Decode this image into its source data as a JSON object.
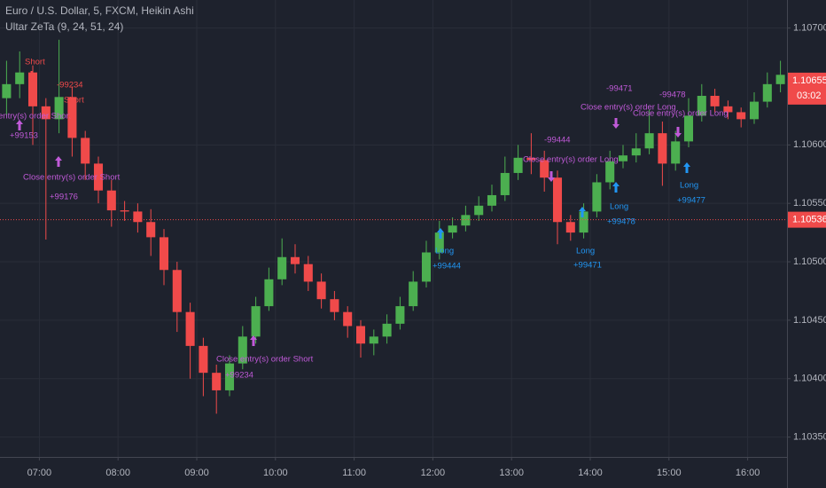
{
  "chart_data": {
    "type": "candlestick",
    "title": "Euro / U.S. Dollar, 5, FXCM, Heikin Ashi",
    "subtitle": "Ultar ZeTa (9, 24, 51, 24)",
    "up_color": "#4caf50",
    "down_color": "#f04a4a",
    "x": [
      395,
      405,
      415,
      425,
      435,
      445,
      455,
      465,
      475,
      485,
      495,
      505,
      515,
      525,
      535,
      545,
      555,
      565,
      575,
      585,
      595,
      605,
      615,
      625,
      635,
      645,
      655,
      665,
      675,
      685,
      695,
      705,
      715,
      725,
      735,
      745,
      755,
      765,
      775,
      785,
      795,
      805,
      815,
      825,
      835,
      845,
      855,
      865,
      875,
      885,
      895,
      905,
      915,
      925,
      935,
      945,
      955,
      965,
      975,
      985
    ],
    "open": [
      1.1064,
      1.10652,
      1.10662,
      1.10633,
      1.10622,
      1.10641,
      1.10606,
      1.10584,
      1.10561,
      1.10544,
      1.10543,
      1.10534,
      1.10521,
      1.10493,
      1.10457,
      1.10428,
      1.10405,
      1.1039,
      1.10413,
      1.10436,
      1.10462,
      1.10485,
      1.10504,
      1.10498,
      1.10483,
      1.10468,
      1.10457,
      1.10445,
      1.1043,
      1.10436,
      1.10447,
      1.10462,
      1.10483,
      1.10508,
      1.10525,
      1.10531,
      1.1054,
      1.10548,
      1.10557,
      1.10576,
      1.10589,
      1.10587,
      1.10572,
      1.10534,
      1.10525,
      1.10543,
      1.10568,
      1.10586,
      1.10591,
      1.10597,
      1.1061,
      1.10584,
      1.10603,
      1.10625,
      1.10642,
      1.10633,
      1.10628,
      1.10622,
      1.10637,
      1.10652
    ],
    "high": [
      1.10672,
      1.1068,
      1.10668,
      1.1064,
      1.1069,
      1.1065,
      1.10612,
      1.1059,
      1.1057,
      1.10552,
      1.1055,
      1.10545,
      1.10528,
      1.105,
      1.10465,
      1.10435,
      1.10412,
      1.1042,
      1.10445,
      1.1047,
      1.10495,
      1.1052,
      1.10515,
      1.10505,
      1.1049,
      1.10475,
      1.10462,
      1.1045,
      1.10442,
      1.10455,
      1.1047,
      1.10492,
      1.10518,
      1.10535,
      1.10538,
      1.10548,
      1.10556,
      1.10566,
      1.1059,
      1.106,
      1.1061,
      1.10595,
      1.10578,
      1.1054,
      1.1055,
      1.10575,
      1.10595,
      1.106,
      1.1061,
      1.1063,
      1.1062,
      1.10612,
      1.1064,
      1.10652,
      1.10648,
      1.10638,
      1.10632,
      1.10645,
      1.10662,
      1.10672
    ],
    "low": [
      1.10625,
      1.1064,
      1.106,
      1.10519,
      1.1061,
      1.1059,
      1.1057,
      1.1055,
      1.1053,
      1.10535,
      1.10525,
      1.10505,
      1.1048,
      1.1044,
      1.104,
      1.10385,
      1.1037,
      1.10385,
      1.10408,
      1.1043,
      1.10458,
      1.1048,
      1.1049,
      1.10475,
      1.1046,
      1.1045,
      1.10435,
      1.10418,
      1.1042,
      1.1043,
      1.10442,
      1.10458,
      1.10478,
      1.10502,
      1.1052,
      1.10526,
      1.10535,
      1.10543,
      1.10552,
      1.1057,
      1.10575,
      1.1056,
      1.10515,
      1.10518,
      1.1052,
      1.10538,
      1.10562,
      1.1058,
      1.10585,
      1.10592,
      1.10565,
      1.10578,
      1.10598,
      1.1062,
      1.10628,
      1.10622,
      1.10615,
      1.10618,
      1.10632,
      1.10645
    ],
    "close": [
      1.10652,
      1.10662,
      1.10633,
      1.10622,
      1.10641,
      1.10606,
      1.10584,
      1.10561,
      1.10544,
      1.10543,
      1.10534,
      1.10521,
      1.10493,
      1.10457,
      1.10428,
      1.10405,
      1.1039,
      1.10413,
      1.10436,
      1.10462,
      1.10485,
      1.10504,
      1.10498,
      1.10483,
      1.10468,
      1.10457,
      1.10445,
      1.1043,
      1.10436,
      1.10447,
      1.10462,
      1.10483,
      1.10508,
      1.10525,
      1.10531,
      1.1054,
      1.10548,
      1.10557,
      1.10576,
      1.10589,
      1.10587,
      1.10572,
      1.10534,
      1.10525,
      1.10543,
      1.10568,
      1.10586,
      1.10591,
      1.10597,
      1.1061,
      1.10584,
      1.10603,
      1.10625,
      1.10642,
      1.10633,
      1.10628,
      1.10622,
      1.10637,
      1.10652,
      1.1066
    ],
    "xlim": [
      390,
      990
    ],
    "xticks": [
      {
        "value": 420,
        "label": "07:00"
      },
      {
        "value": 480,
        "label": "08:00"
      },
      {
        "value": 540,
        "label": "09:00"
      },
      {
        "value": 600,
        "label": "10:00"
      },
      {
        "value": 660,
        "label": "11:00"
      },
      {
        "value": 720,
        "label": "12:00"
      },
      {
        "value": 780,
        "label": "13:00"
      },
      {
        "value": 840,
        "label": "14:00"
      },
      {
        "value": 900,
        "label": "15:00"
      },
      {
        "value": 960,
        "label": "16:00"
      }
    ],
    "ylim": [
      1.10333,
      1.10724
    ],
    "yticks": [
      {
        "value": 1.107,
        "label": "1.10700"
      },
      {
        "value": 1.106,
        "label": "1.10600"
      },
      {
        "value": 1.1055,
        "label": "1.10550"
      },
      {
        "value": 1.105,
        "label": "1.10500"
      },
      {
        "value": 1.1045,
        "label": "1.10450"
      },
      {
        "value": 1.104,
        "label": "1.10400"
      },
      {
        "value": 1.1035,
        "label": "1.10350"
      }
    ],
    "grid": true,
    "price_line": {
      "value": 1.10536,
      "label": "1.10536"
    },
    "last_price": {
      "value": 1.10655,
      "label": "1.10655"
    },
    "countdown": "03:02",
    "annotations": [
      {
        "text": "Short",
        "color": "#f04a4a"
      },
      {
        "text": "-99234",
        "color": "#f04a4a"
      },
      {
        "text": "Short",
        "color": "#f04a4a"
      },
      {
        "text": "entry(s) order Short",
        "color": "#c05ad8"
      },
      {
        "text": "+99153",
        "color": "#c05ad8"
      },
      {
        "text": "Close entry(s) order Short",
        "color": "#c05ad8"
      },
      {
        "text": "+99176",
        "color": "#c05ad8"
      },
      {
        "text": "Close entry(s) order Short",
        "color": "#c05ad8"
      },
      {
        "text": "+99234",
        "color": "#c05ad8"
      },
      {
        "text": "-99444",
        "color": "#c05ad8"
      },
      {
        "text": "Close entry(s) order Long",
        "color": "#c05ad8"
      },
      {
        "text": "Long",
        "color": "#2196f3"
      },
      {
        "text": "+99444",
        "color": "#2196f3"
      },
      {
        "text": "Long",
        "color": "#2196f3"
      },
      {
        "text": "+99471",
        "color": "#2196f3"
      },
      {
        "text": "Long",
        "color": "#2196f3"
      },
      {
        "text": "+99478",
        "color": "#2196f3"
      },
      {
        "text": "-99471",
        "color": "#c05ad8"
      },
      {
        "text": "Close entry(s) order Long",
        "color": "#c05ad8"
      },
      {
        "text": "-99478",
        "color": "#c05ad8"
      },
      {
        "text": "Close entry(s) order Long",
        "color": "#c05ad8"
      },
      {
        "text": "Long",
        "color": "#2196f3"
      },
      {
        "text": "+99477",
        "color": "#2196f3"
      }
    ]
  }
}
